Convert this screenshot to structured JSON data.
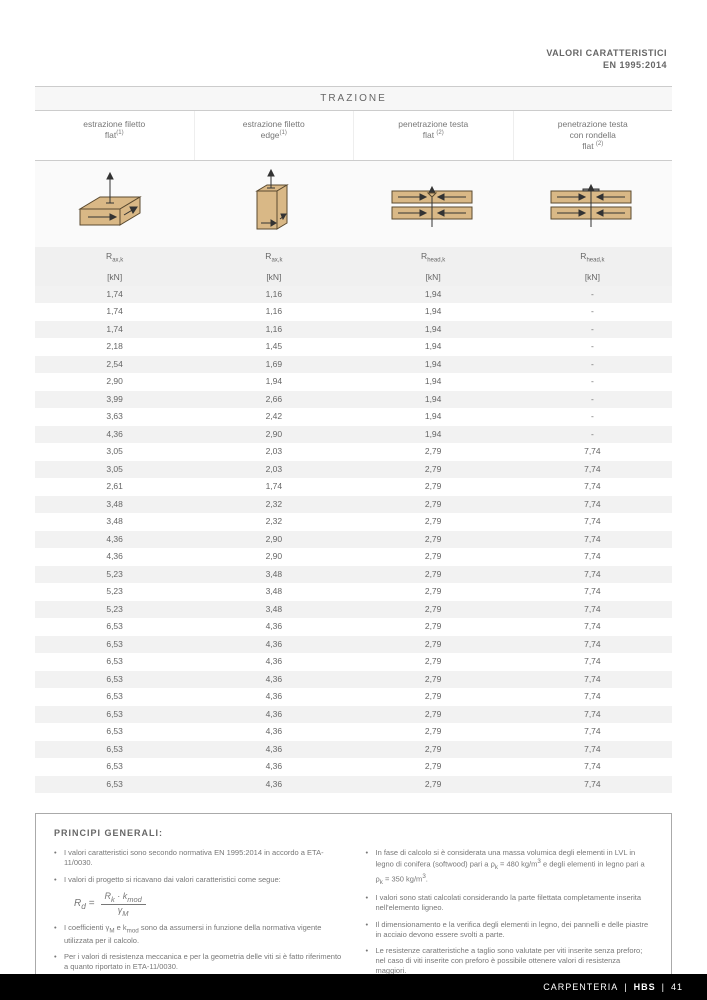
{
  "header": {
    "line1": "VALORI CARATTERISTICI",
    "line2": "EN 1995:2014"
  },
  "table": {
    "title": "TRAZIONE",
    "columns": [
      {
        "name_html": "estrazione filetto<br>flat<sup>(1)</sup>",
        "symbol_html": "R<sub>ax,k</sub>",
        "unit": "[kN]"
      },
      {
        "name_html": "estrazione filetto<br>edge<sup>(1)</sup>",
        "symbol_html": "R<sub>ax,k</sub>",
        "unit": "[kN]"
      },
      {
        "name_html": "penetrazione testa<br>flat <sup>(2)</sup>",
        "symbol_html": "R<sub>head,k</sub>",
        "unit": "[kN]"
      },
      {
        "name_html": "penetrazione testa<br>con rondella<br>flat <sup>(2)</sup>",
        "symbol_html": "R<sub>head,k</sub>",
        "unit": "[kN]"
      }
    ],
    "rows": [
      [
        "1,74",
        "1,16",
        "1,94",
        "-"
      ],
      [
        "1,74",
        "1,16",
        "1,94",
        "-"
      ],
      [
        "1,74",
        "1,16",
        "1,94",
        "-"
      ],
      [
        "2,18",
        "1,45",
        "1,94",
        "-"
      ],
      [
        "2,54",
        "1,69",
        "1,94",
        "-"
      ],
      [
        "2,90",
        "1,94",
        "1,94",
        "-"
      ],
      [
        "3,99",
        "2,66",
        "1,94",
        "-"
      ],
      [
        "3,63",
        "2,42",
        "1,94",
        "-"
      ],
      [
        "4,36",
        "2,90",
        "1,94",
        "-"
      ],
      [
        "3,05",
        "2,03",
        "2,79",
        "7,74"
      ],
      [
        "3,05",
        "2,03",
        "2,79",
        "7,74"
      ],
      [
        "2,61",
        "1,74",
        "2,79",
        "7,74"
      ],
      [
        "3,48",
        "2,32",
        "2,79",
        "7,74"
      ],
      [
        "3,48",
        "2,32",
        "2,79",
        "7,74"
      ],
      [
        "4,36",
        "2,90",
        "2,79",
        "7,74"
      ],
      [
        "4,36",
        "2,90",
        "2,79",
        "7,74"
      ],
      [
        "5,23",
        "3,48",
        "2,79",
        "7,74"
      ],
      [
        "5,23",
        "3,48",
        "2,79",
        "7,74"
      ],
      [
        "5,23",
        "3,48",
        "2,79",
        "7,74"
      ],
      [
        "6,53",
        "4,36",
        "2,79",
        "7,74"
      ],
      [
        "6,53",
        "4,36",
        "2,79",
        "7,74"
      ],
      [
        "6,53",
        "4,36",
        "2,79",
        "7,74"
      ],
      [
        "6,53",
        "4,36",
        "2,79",
        "7,74"
      ],
      [
        "6,53",
        "4,36",
        "2,79",
        "7,74"
      ],
      [
        "6,53",
        "4,36",
        "2,79",
        "7,74"
      ],
      [
        "6,53",
        "4,36",
        "2,79",
        "7,74"
      ],
      [
        "6,53",
        "4,36",
        "2,79",
        "7,74"
      ],
      [
        "6,53",
        "4,36",
        "2,79",
        "7,74"
      ],
      [
        "6,53",
        "4,36",
        "2,79",
        "7,74"
      ]
    ],
    "row_shade_even": "#ffffff",
    "row_shade_odd": "#f2f2f2"
  },
  "notes": {
    "title": "PRINCIPI GENERALI:",
    "left": [
      "I valori caratteristici sono secondo normativa EN 1995:2014 in accordo a ETA-11/0030.",
      "I valori di progetto si ricavano dai valori caratteristici come segue:",
      "I coefficienti γ<sub>M</sub> e k<sub>mod</sub> sono da assumersi in funzione della normativa vigente utilizzata per il calcolo.",
      "Per i valori di resistenza meccanica e per la geometria delle viti si è fatto riferimento a quanto riportato in ETA-11/0030."
    ],
    "right": [
      "In fase di calcolo si è considerata una massa volumica degli elementi in LVL in legno di conifera (softwood) pari a ρ<sub>k</sub> = 480 kg/m<sup>3</sup> e degli elementi in legno pari a ρ<sub>k</sub> = 350 kg/m<sup>3</sup>.",
      "I valori sono stati calcolati considerando la parte filettata completamente inserita nell'elemento ligneo.",
      "Il dimensionamento e la verifica degli elementi in legno, dei pannelli e delle piastre in acciaio devono essere svolti a parte.",
      "Le resistenze caratteristiche a taglio sono valutate per viti inserite senza preforo; nel caso di viti inserite con preforo è possibile ottenere valori di resistenza maggiori."
    ],
    "formula": {
      "lhs": "R<sub>d</sub> =",
      "num": "R<sub>k</sub> · k<sub>mod</sub>",
      "den": "γ<sub>M</sub>"
    }
  },
  "footer": {
    "section": "CARPENTERIA",
    "code": "HBS",
    "page": "41"
  },
  "colors": {
    "wood_fill": "#d9b886",
    "wood_stroke": "#5a4a30",
    "arrow": "#333333"
  }
}
